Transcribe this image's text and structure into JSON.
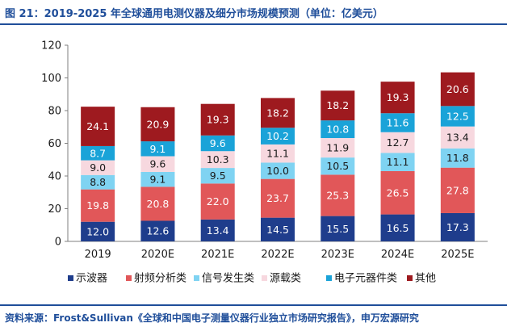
{
  "title": "图 21：2019-2025 年全球通用电测仪器及细分市场规模预测（单位：亿美元）",
  "source": "资料来源：Frost&Sullivan《全球和中国电子测量仪器行业独立市场研究报告》，申万宏源研究",
  "chart_data": {
    "type": "bar",
    "stacked": true,
    "categories": [
      "2019",
      "2020E",
      "2021E",
      "2022E",
      "2023E",
      "2024E",
      "2025E"
    ],
    "series": [
      {
        "name": "示波器",
        "color": "#1f3d8c",
        "label_color": "#ffffff",
        "values": [
          12.0,
          12.6,
          13.4,
          14.5,
          15.5,
          16.5,
          17.3
        ]
      },
      {
        "name": "射频分析类",
        "color": "#e15759",
        "label_color": "#ffffff",
        "values": [
          19.8,
          20.8,
          22.0,
          23.7,
          25.3,
          26.5,
          27.8
        ]
      },
      {
        "name": "信号发生类",
        "color": "#7fd3f2",
        "label_color": "#1a1a1a",
        "values": [
          8.8,
          9.1,
          9.5,
          10.0,
          10.5,
          11.1,
          11.8
        ]
      },
      {
        "name": "源载类",
        "color": "#f7d8df",
        "label_color": "#1a1a1a",
        "values": [
          9.0,
          9.6,
          10.3,
          11.1,
          11.9,
          12.7,
          13.4
        ]
      },
      {
        "name": "电子元器件类",
        "color": "#1aa3d8",
        "label_color": "#ffffff",
        "values": [
          8.7,
          9.1,
          9.6,
          10.2,
          10.8,
          11.6,
          12.5
        ]
      },
      {
        "name": "其他",
        "color": "#9e1a1f",
        "label_color": "#ffffff",
        "values": [
          24.1,
          20.9,
          19.3,
          18.2,
          18.2,
          19.3,
          20.6
        ]
      }
    ],
    "data_labels": [
      [
        "12.0",
        "12.6",
        "13.4",
        "14.5",
        "15.5",
        "16.5",
        "17.3"
      ],
      [
        "19.8",
        "20.8",
        "22.0",
        "23.7",
        "25.3",
        "26.5",
        "27.8"
      ],
      [
        "8.8",
        "9.1",
        "9.5",
        "10.0",
        "10.5",
        "11.1",
        "11.8"
      ],
      [
        "9.0",
        "9.6",
        "10.3",
        "11.1",
        "11.9",
        "12.7",
        "13.4"
      ],
      [
        "8.7",
        "9.1",
        "9.6",
        "10.2",
        "10.8",
        "11.6",
        "12.5"
      ],
      [
        "24.1",
        "20.9",
        "19.3",
        "18.2",
        "18.2",
        "19.3",
        "20.6"
      ]
    ],
    "y_ticks": [
      "0",
      "20",
      "40",
      "60",
      "80",
      "100",
      "120"
    ],
    "ylim": [
      0,
      120
    ],
    "legend_position": "bottom",
    "grid": false
  }
}
